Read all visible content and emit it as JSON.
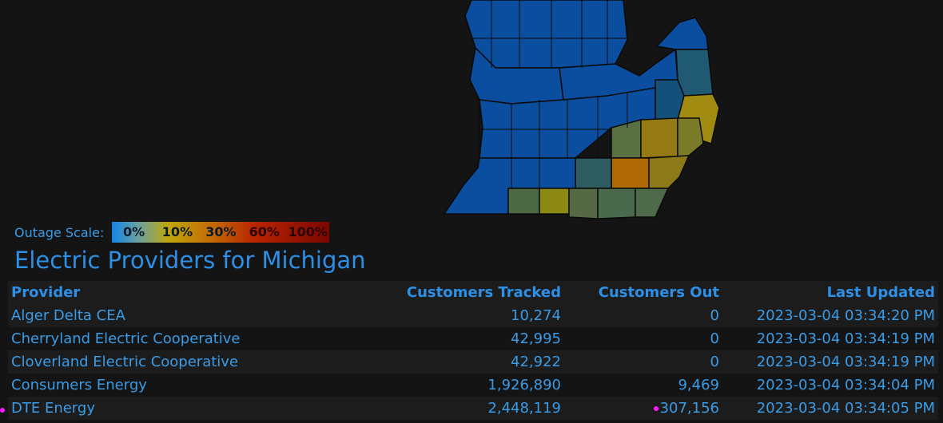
{
  "scale": {
    "label": "Outage Scale:",
    "stops": [
      "0%",
      "10%",
      "30%",
      "60%",
      "100%"
    ]
  },
  "title": "Electric Providers for Michigan",
  "table": {
    "headers": {
      "provider": "Provider",
      "tracked": "Customers Tracked",
      "out": "Customers Out",
      "updated": "Last Updated"
    },
    "rows": [
      {
        "provider": "Alger Delta CEA",
        "tracked": "10,274",
        "out": "0",
        "updated": "2023-03-04 03:34:20 PM"
      },
      {
        "provider": "Cherryland Electric Cooperative",
        "tracked": "42,995",
        "out": "0",
        "updated": "2023-03-04 03:34:19 PM"
      },
      {
        "provider": "Cloverland Electric Cooperative",
        "tracked": "42,922",
        "out": "0",
        "updated": "2023-03-04 03:34:19 PM"
      },
      {
        "provider": "Consumers Energy",
        "tracked": "1,926,890",
        "out": "9,469",
        "updated": "2023-03-04 03:34:04 PM"
      },
      {
        "provider": "DTE Energy",
        "tracked": "2,448,119",
        "out": "307,156",
        "updated": "2023-03-04 03:34:05 PM"
      }
    ]
  },
  "colors": {
    "accent": "#2d8fe6",
    "marker": "#ff18ff",
    "outage_0": "#0b4ea0",
    "outage_low": "#506c48",
    "outage_mid": "#a08a10",
    "outage_high": "#b06a05"
  }
}
